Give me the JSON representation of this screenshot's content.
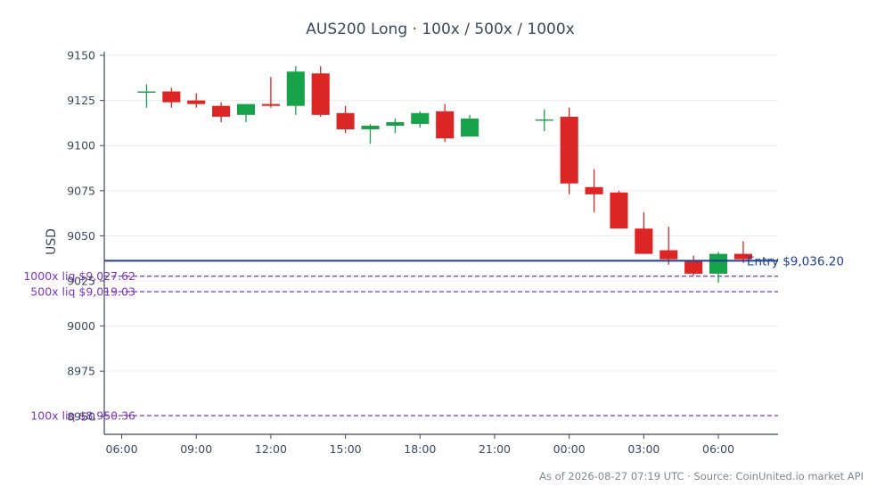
{
  "chart_data": {
    "type": "candlestick",
    "title": "AUS200 Long · 100x / 500x / 1000x",
    "ylabel": "USD",
    "ylim": [
      8940,
      9152
    ],
    "x_range_hours": [
      -0.7,
      26.4
    ],
    "grid": "horizontal",
    "yticks": [
      8950,
      8975,
      9000,
      9025,
      9050,
      9075,
      9100,
      9125,
      9150
    ],
    "xticks": [
      {
        "t": 0,
        "label": "06:00"
      },
      {
        "t": 3,
        "label": "09:00"
      },
      {
        "t": 6,
        "label": "12:00"
      },
      {
        "t": 9,
        "label": "15:00"
      },
      {
        "t": 12,
        "label": "18:00"
      },
      {
        "t": 15,
        "label": "21:00"
      },
      {
        "t": 18,
        "label": "00:00"
      },
      {
        "t": 21,
        "label": "03:00"
      },
      {
        "t": 24,
        "label": "06:00"
      }
    ],
    "candles": [
      {
        "t": 1,
        "open": 9129.5,
        "high": 9134,
        "low": 9121,
        "close": 9130
      },
      {
        "t": 2,
        "open": 9130,
        "high": 9132,
        "low": 9121,
        "close": 9124
      },
      {
        "t": 3,
        "open": 9125,
        "high": 9129,
        "low": 9121,
        "close": 9123
      },
      {
        "t": 4,
        "open": 9122,
        "high": 9124,
        "low": 9113,
        "close": 9116
      },
      {
        "t": 5,
        "open": 9117,
        "high": 9123,
        "low": 9113,
        "close": 9123
      },
      {
        "t": 6,
        "open": 9123,
        "high": 9138,
        "low": 9121,
        "close": 9122
      },
      {
        "t": 7,
        "open": 9122,
        "high": 9144,
        "low": 9117,
        "close": 9141
      },
      {
        "t": 8,
        "open": 9140,
        "high": 9144,
        "low": 9116,
        "close": 9117
      },
      {
        "t": 9,
        "open": 9118,
        "high": 9122,
        "low": 9107,
        "close": 9109
      },
      {
        "t": 10,
        "open": 9109,
        "high": 9112,
        "low": 9101,
        "close": 9111
      },
      {
        "t": 11,
        "open": 9111,
        "high": 9115,
        "low": 9107,
        "close": 9113
      },
      {
        "t": 12,
        "open": 9112,
        "high": 9119,
        "low": 9110,
        "close": 9118
      },
      {
        "t": 13,
        "open": 9119,
        "high": 9123,
        "low": 9102,
        "close": 9104
      },
      {
        "t": 14,
        "open": 9105,
        "high": 9117,
        "low": 9105,
        "close": 9115
      },
      {
        "t": 17,
        "open": 9114,
        "high": 9120,
        "low": 9108,
        "close": 9114.5
      },
      {
        "t": 18,
        "open": 9116,
        "high": 9121,
        "low": 9073,
        "close": 9079
      },
      {
        "t": 19,
        "open": 9077,
        "high": 9087,
        "low": 9063,
        "close": 9073
      },
      {
        "t": 20,
        "open": 9074,
        "high": 9075,
        "low": 9054,
        "close": 9054
      },
      {
        "t": 21,
        "open": 9054,
        "high": 9063,
        "low": 9040,
        "close": 9040
      },
      {
        "t": 22,
        "open": 9042,
        "high": 9055,
        "low": 9034,
        "close": 9037
      },
      {
        "t": 23,
        "open": 9036,
        "high": 9039,
        "low": 9028,
        "close": 9029
      },
      {
        "t": 24,
        "open": 9029,
        "high": 9041,
        "low": 9024,
        "close": 9040
      },
      {
        "t": 25,
        "open": 9040,
        "high": 9047,
        "low": 9035,
        "close": 9037
      }
    ],
    "entry": {
      "price": 9036.2,
      "label": "Entry $9,036.20",
      "color": "#1f3f8f"
    },
    "liquidations": [
      {
        "price": 9027.62,
        "label": "1000x liq $9,027.62"
      },
      {
        "price": 9019.03,
        "label": "500x liq $9,019.03"
      },
      {
        "price": 8950.36,
        "label": "100x liq $8,950.36"
      }
    ],
    "colors": {
      "up": "#16a34a",
      "down": "#dc2626",
      "liq": "#8b3fd9",
      "axis": "#3b4a5c",
      "grid": "#ececec"
    },
    "footer": "As of 2026-08-27 07:19 UTC · Source: CoinUnited.io market API"
  }
}
